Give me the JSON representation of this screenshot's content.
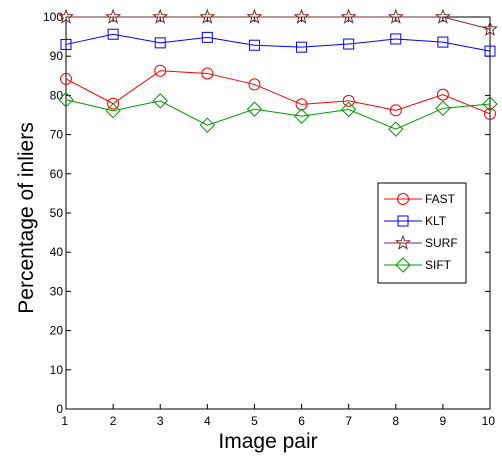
{
  "chart_data": {
    "type": "line",
    "xlabel": "Image pair",
    "ylabel": "Percentage of inliers",
    "x": [
      1,
      2,
      3,
      4,
      5,
      6,
      7,
      8,
      9,
      10
    ],
    "xlim": [
      1,
      10
    ],
    "ylim": [
      0,
      100
    ],
    "xticks": [
      "1",
      "2",
      "3",
      "4",
      "5",
      "6",
      "7",
      "8",
      "9",
      "10"
    ],
    "yticks": [
      "0",
      "10",
      "20",
      "30",
      "40",
      "50",
      "60",
      "70",
      "80",
      "90",
      "100"
    ],
    "grid": false,
    "legend_position": "center-right",
    "series": [
      {
        "name": "FAST",
        "color": "#ff0000",
        "marker": "circle",
        "values": [
          84.2,
          77.9,
          86.3,
          85.6,
          82.8,
          77.7,
          78.6,
          76.2,
          80.2,
          75.3
        ]
      },
      {
        "name": "KLT",
        "color": "#0000ff",
        "marker": "square",
        "values": [
          93.0,
          95.6,
          93.4,
          94.8,
          92.8,
          92.3,
          93.1,
          94.4,
          93.6,
          91.3
        ]
      },
      {
        "name": "SURF",
        "color": "#7a2c2c",
        "marker": "star",
        "values": [
          100,
          100,
          100,
          100,
          100,
          100,
          100,
          100,
          100,
          96.9
        ]
      },
      {
        "name": "SIFT",
        "color": "#009900",
        "marker": "diamond",
        "values": [
          78.9,
          76.1,
          78.6,
          72.4,
          76.5,
          74.7,
          76.4,
          71.4,
          76.7,
          77.8
        ]
      }
    ]
  }
}
